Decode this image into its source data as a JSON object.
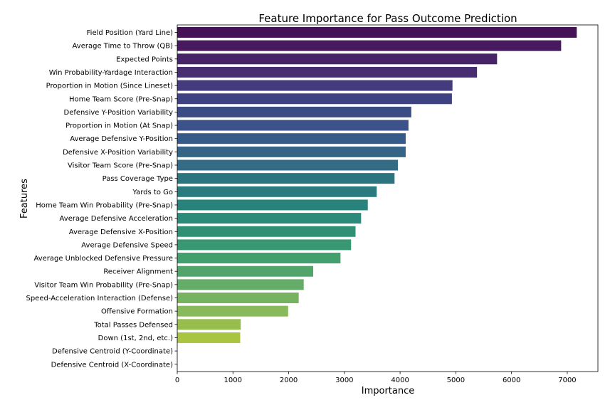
{
  "chart_data": {
    "type": "bar",
    "orientation": "horizontal",
    "title": "Feature Importance for Pass Outcome Prediction",
    "xlabel": "Importance",
    "ylabel": "Features",
    "xlim": [
      0,
      7550
    ],
    "xticks": [
      0,
      1000,
      2000,
      3000,
      4000,
      5000,
      6000,
      7000
    ],
    "grid": false,
    "colormap": "viridis",
    "categories": [
      "Field Position (Yard Line)",
      "Average Time to Throw (QB)",
      "Expected Points",
      "Win Probability-Yardage Interaction",
      "Proportion in Motion (Since Lineset)",
      "Home Team Score (Pre-Snap)",
      "Defensive Y-Position Variability",
      "Proportion in Motion (At Snap)",
      "Average Defensive Y-Position",
      "Defensive X-Position Variability",
      "Visitor Team Score (Pre-Snap)",
      "Pass Coverage Type",
      "Yards to Go",
      "Home Team Win Probability (Pre-Snap)",
      "Average Defensive Acceleration",
      "Average Defensive X-Position",
      "Average Defensive Speed",
      "Average Unblocked Defensive Pressure",
      "Receiver Alignment",
      "Visitor Team Win Probability (Pre-Snap)",
      "Speed-Acceleration Interaction (Defense)",
      "Offensive Formation",
      "Total Passes Defensed",
      "Down (1st, 2nd, etc.)",
      "Defensive Centroid (Y-Coordinate)",
      "Defensive Centroid (X-Coordinate)"
    ],
    "values": [
      7170,
      6890,
      5740,
      5380,
      4940,
      4930,
      4200,
      4150,
      4100,
      4100,
      3960,
      3900,
      3580,
      3420,
      3300,
      3200,
      3120,
      2930,
      2440,
      2270,
      2180,
      1990,
      1140,
      1130,
      0,
      0
    ],
    "colors": [
      "#451256",
      "#471a5f",
      "#472468",
      "#482d70",
      "#443b7f",
      "#3f4282",
      "#3b4c85",
      "#3b538a",
      "#365b89",
      "#356487",
      "#336c84",
      "#2d7481",
      "#2a7b7f",
      "#28837c",
      "#2b8a79",
      "#2f9076",
      "#389873",
      "#439f6e",
      "#51a56b",
      "#64ac67",
      "#76b360",
      "#88b95a",
      "#97bd4d",
      "#a8c440",
      "#b8c935",
      "#c8ce2e"
    ]
  }
}
